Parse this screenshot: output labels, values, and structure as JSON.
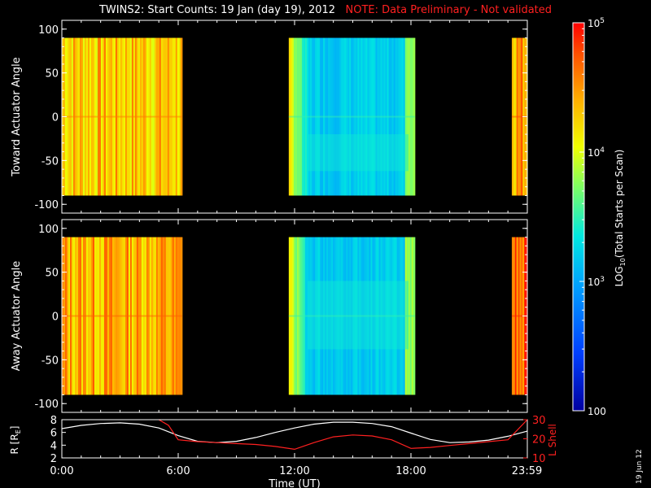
{
  "header": {
    "title": "TWINS2: Start Counts: 19 Jan (day  19), 2012",
    "note": "NOTE: Data Preliminary - Not validated"
  },
  "side_date": "19 Jun 12",
  "colors": {
    "background": "#000000",
    "axis": "#ffffff",
    "note": "#ff2020",
    "r_line": "#ffffff",
    "lshell_line": "#ff2020"
  },
  "chart_data": [
    {
      "type": "heatmap",
      "name": "toward",
      "ylabel": "Toward Actuator Angle",
      "ylim": [
        -110,
        110
      ],
      "yticks": [
        100,
        50,
        0,
        -50,
        -100
      ],
      "ytick_labels": [
        "100",
        "50",
        "0",
        "-50",
        "-100"
      ],
      "xlim": [
        0,
        24
      ],
      "data_angle_range": [
        -90,
        90
      ],
      "segments": [
        {
          "start": 0.0,
          "end": 6.2,
          "level": 4.3
        },
        {
          "start": 11.7,
          "end": 18.2,
          "level": 3.2
        },
        {
          "start": 23.2,
          "end": 24.0,
          "level": 4.5
        }
      ]
    },
    {
      "type": "heatmap",
      "name": "away",
      "ylabel": "Away Actuator Angle",
      "ylim": [
        -110,
        110
      ],
      "yticks": [
        100,
        50,
        0,
        -50,
        -100
      ],
      "ytick_labels": [
        "100",
        "50",
        "0",
        "-50",
        "-100"
      ],
      "xlim": [
        0,
        24
      ],
      "data_angle_range": [
        -90,
        90
      ],
      "segments": [
        {
          "start": 0.0,
          "end": 6.2,
          "level": 4.4
        },
        {
          "start": 11.7,
          "end": 18.2,
          "level": 3.2
        },
        {
          "start": 23.2,
          "end": 24.0,
          "level": 4.6
        }
      ]
    },
    {
      "type": "line",
      "name": "orbit",
      "ylabel_left": "R [R",
      "ylabel_left_sub": "E",
      "ylabel_left_end": "]",
      "ylabel_right": "L Shell",
      "ylim_left": [
        2,
        8
      ],
      "ylim_right": [
        10,
        30
      ],
      "yticks_left": [
        "8",
        "6",
        "4",
        "2"
      ],
      "yticks_right": [
        "30",
        "20",
        "10"
      ],
      "xlabel": "Time (UT)",
      "xticks": [
        0,
        6,
        12,
        18,
        23.98
      ],
      "xtick_labels": [
        "0:00",
        "6:00",
        "12:00",
        "18:00",
        "23:59"
      ],
      "series": [
        {
          "axis": "left",
          "x": [
            0,
            1,
            2,
            3,
            4,
            5,
            6,
            7,
            8,
            9,
            10,
            11,
            12,
            13,
            14,
            15,
            16,
            17,
            18,
            19,
            20,
            21,
            22,
            23,
            24
          ],
          "y": [
            6.6,
            7.1,
            7.4,
            7.5,
            7.3,
            6.7,
            5.5,
            4.6,
            4.4,
            4.6,
            5.2,
            6.0,
            6.7,
            7.3,
            7.6,
            7.6,
            7.4,
            6.9,
            5.9,
            4.9,
            4.4,
            4.5,
            4.8,
            5.4,
            6.2
          ]
        },
        {
          "axis": "right",
          "x": [
            5.0,
            5.5,
            6.0,
            7,
            8,
            9,
            10,
            11,
            12,
            13,
            14,
            15,
            16,
            17,
            18,
            19,
            20,
            21,
            22,
            23,
            24
          ],
          "y": [
            31,
            27,
            19.5,
            18.5,
            18,
            17.5,
            17,
            16,
            14.5,
            18,
            21,
            22,
            21.5,
            19.5,
            15,
            15.5,
            16.5,
            17.5,
            18.5,
            19.5,
            31
          ]
        }
      ]
    },
    {
      "type": "heatmap",
      "name": "colorbar",
      "label_prefix": "LOG",
      "label_sub": "10",
      "label_rest": "(Total Starts per Scan)",
      "range": [
        2,
        5
      ],
      "ticks": [
        {
          "value": 5,
          "base": "10",
          "exp": "5"
        },
        {
          "value": 4,
          "base": "10",
          "exp": "4"
        },
        {
          "value": 3,
          "base": "10",
          "exp": "3"
        },
        {
          "value": 2,
          "base": "100",
          "exp": ""
        }
      ]
    }
  ]
}
